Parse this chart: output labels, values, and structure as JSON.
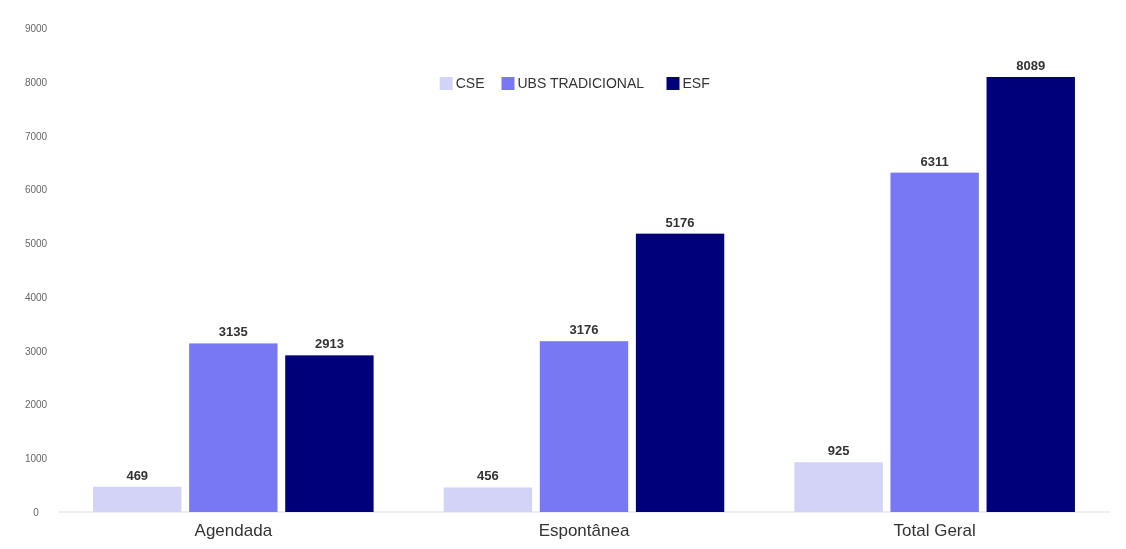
{
  "chart_data": {
    "type": "bar",
    "categories": [
      "Agendada",
      "Espontânea",
      "Total Geral"
    ],
    "series": [
      {
        "name": "CSE",
        "color": "#d2d3f7",
        "values": [
          469,
          456,
          925
        ]
      },
      {
        "name": "UBS TRADICIONAL",
        "color": "#7878f4",
        "values": [
          3135,
          3176,
          6311
        ]
      },
      {
        "name": "ESF",
        "color": "#00007a",
        "values": [
          2913,
          5176,
          8089
        ]
      }
    ],
    "ylim": [
      0,
      9000
    ],
    "yticks": [
      0,
      1000,
      2000,
      3000,
      4000,
      5000,
      6000,
      7000,
      8000,
      9000
    ],
    "data_labels": true,
    "legend": "top",
    "grid": false
  }
}
